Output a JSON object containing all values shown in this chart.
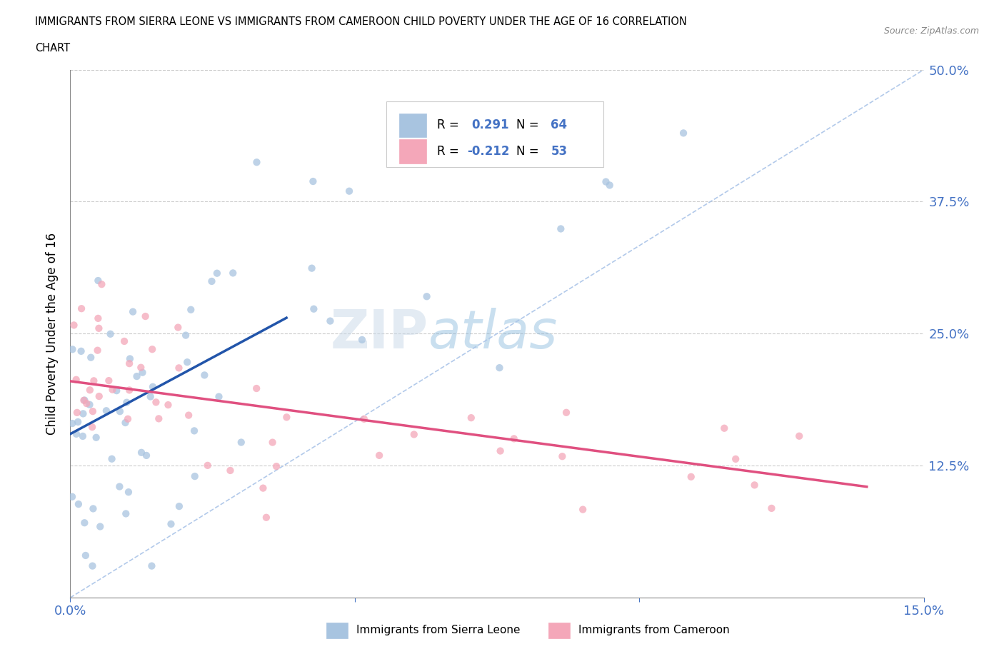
{
  "title_line1": "IMMIGRANTS FROM SIERRA LEONE VS IMMIGRANTS FROM CAMEROON CHILD POVERTY UNDER THE AGE OF 16 CORRELATION",
  "title_line2": "CHART",
  "source": "Source: ZipAtlas.com",
  "ylabel": "Child Poverty Under the Age of 16",
  "xlim": [
    0.0,
    0.15
  ],
  "ylim": [
    0.0,
    0.5
  ],
  "sierra_leone_color": "#a8c4e0",
  "cameroon_color": "#f4a7b9",
  "sierra_leone_R": 0.291,
  "sierra_leone_N": 64,
  "cameroon_R": -0.212,
  "cameroon_N": 53,
  "trend_sierra_leone_color": "#2255aa",
  "trend_cameroon_color": "#e05080",
  "trend_dashed_color": "#aac4e8",
  "legend_label_sierra": "Immigrants from Sierra Leone",
  "legend_label_cameroon": "Immigrants from Cameroon",
  "sl_trend_x0": 0.0,
  "sl_trend_y0": 0.155,
  "sl_trend_x1": 0.038,
  "sl_trend_y1": 0.265,
  "cam_trend_x0": 0.0,
  "cam_trend_y0": 0.205,
  "cam_trend_x1": 0.14,
  "cam_trend_y1": 0.105
}
